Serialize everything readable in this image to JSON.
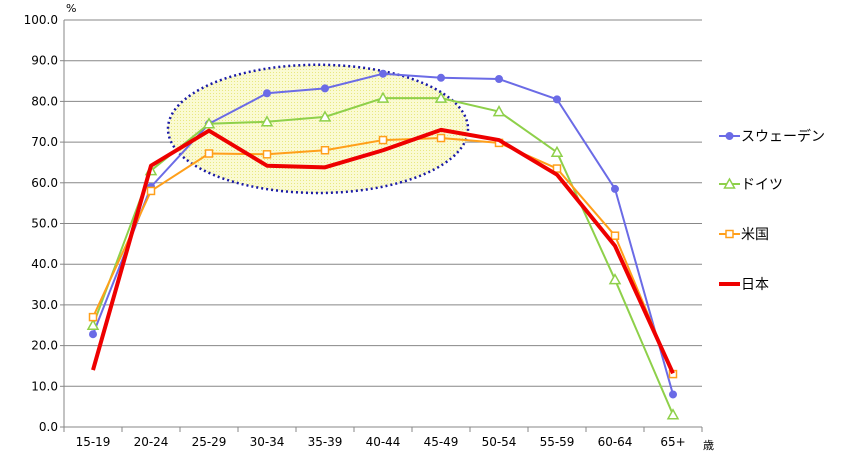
{
  "chart_data": {
    "type": "line",
    "categories": [
      "15-19",
      "20-24",
      "25-29",
      "30-34",
      "35-39",
      "40-44",
      "45-49",
      "50-54",
      "55-59",
      "60-64",
      "65+"
    ],
    "y_unit": "%",
    "x_unit": "歳",
    "ylim": [
      0,
      100
    ],
    "yticks": [
      "0.0",
      "10.0",
      "20.0",
      "30.0",
      "40.0",
      "50.0",
      "60.0",
      "70.0",
      "80.0",
      "90.0",
      "100.0"
    ],
    "grid": true,
    "legend_position": "right",
    "highlight": {
      "shape": "ellipse",
      "style": "dotted",
      "x_from": "25-29",
      "x_to": "45-49",
      "y_from": 57.5,
      "y_to": 89.0
    },
    "series": [
      {
        "name": "スウェーデン",
        "color": "#6b6be6",
        "marker": "circle",
        "values": [
          22.8,
          59.0,
          74.5,
          82.0,
          83.2,
          86.8,
          85.8,
          85.5,
          80.5,
          58.5,
          8.0
        ]
      },
      {
        "name": "ドイツ",
        "color": "#8ed04a",
        "marker": "triangle",
        "values": [
          25.0,
          63.0,
          74.5,
          75.0,
          76.2,
          80.8,
          80.8,
          77.5,
          67.5,
          36.2,
          3.0
        ]
      },
      {
        "name": "米国",
        "color": "#ff9f1a",
        "marker": "square",
        "values": [
          27.0,
          58.0,
          67.2,
          67.0,
          68.0,
          70.5,
          71.0,
          69.8,
          63.5,
          47.0,
          13.0
        ]
      },
      {
        "name": "日本",
        "color": "#ee0000",
        "marker": "none",
        "values": [
          14.0,
          64.2,
          72.8,
          64.2,
          63.8,
          68.0,
          73.0,
          70.5,
          62.0,
          44.5,
          13.2
        ]
      }
    ]
  }
}
